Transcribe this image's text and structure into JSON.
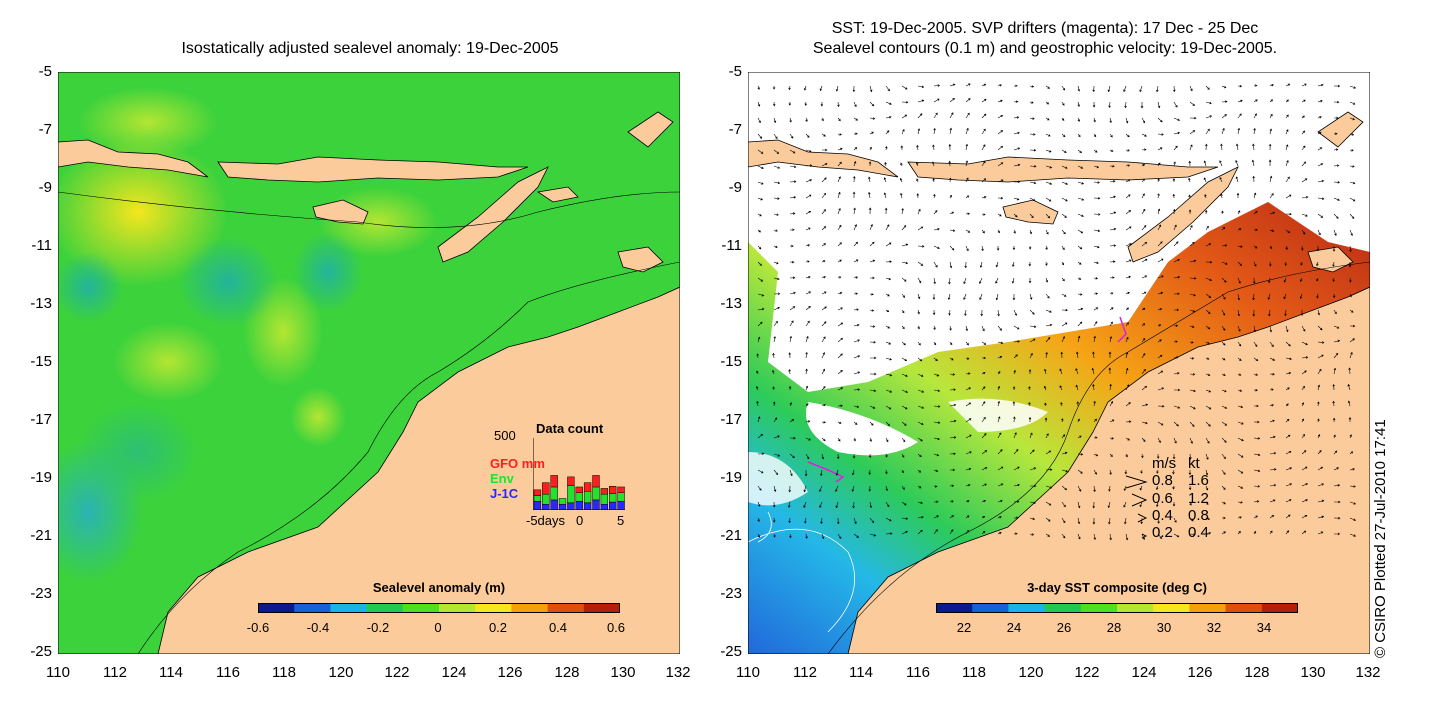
{
  "left_panel": {
    "title": "Isostatically adjusted sealevel anomaly: 19-Dec-2005",
    "y_ticks": [
      "-5",
      "-7",
      "-9",
      "-11",
      "-13",
      "-15",
      "-17",
      "-19",
      "-21",
      "-23",
      "-25"
    ],
    "x_ticks": [
      "110",
      "112",
      "114",
      "116",
      "118",
      "120",
      "122",
      "124",
      "126",
      "128",
      "130",
      "132"
    ],
    "colorbar": {
      "title": "Sealevel anomaly (m)",
      "ticks": [
        "-0.6",
        "-0.4",
        "-0.2",
        "0",
        "0.2",
        "0.4",
        "0.6"
      ],
      "colors": [
        "#0a1a8c",
        "#1660d8",
        "#19b4e6",
        "#22c850",
        "#4ee01e",
        "#b4e632",
        "#f5e61e",
        "#f5a00a",
        "#e1500a",
        "#b41e0a"
      ]
    },
    "data_count": {
      "title": "Data count",
      "ymax_label": "500",
      "legend": [
        {
          "label": "GFO mm",
          "color": "#ff1e1e"
        },
        {
          "label": "Env",
          "color": "#22e22e"
        },
        {
          "label": "J-1C",
          "color": "#2828ff"
        }
      ],
      "x_labels": [
        "-5days",
        "0",
        "5"
      ],
      "days": [
        -5,
        -4,
        -3,
        -2,
        -1,
        0,
        1,
        2,
        3,
        4,
        5
      ],
      "j1c": [
        60,
        40,
        70,
        40,
        50,
        60,
        50,
        70,
        40,
        55,
        60
      ],
      "env": [
        40,
        70,
        90,
        40,
        120,
        60,
        80,
        90,
        70,
        60,
        60
      ],
      "gfo": [
        40,
        80,
        80,
        0,
        60,
        40,
        60,
        80,
        40,
        50,
        40
      ]
    }
  },
  "right_panel": {
    "title_line1": "SST: 19-Dec-2005. SVP drifters (magenta): 17 Dec - 25 Dec",
    "title_line2": "Sealevel contours (0.1 m) and geostrophic velocity: 19-Dec-2005.",
    "y_ticks": [
      "-5",
      "-7",
      "-9",
      "-11",
      "-13",
      "-15",
      "-17",
      "-19",
      "-21",
      "-23",
      "-25"
    ],
    "x_ticks": [
      "110",
      "112",
      "114",
      "116",
      "118",
      "120",
      "122",
      "124",
      "126",
      "128",
      "130",
      "132"
    ],
    "colorbar": {
      "title": "3-day SST composite (deg C)",
      "ticks": [
        "22",
        "24",
        "26",
        "28",
        "30",
        "32",
        "34"
      ],
      "colors": [
        "#0a1a8c",
        "#1660d8",
        "#19b4e6",
        "#22c850",
        "#4ee01e",
        "#b4e632",
        "#f5e61e",
        "#f5a00a",
        "#e1500a",
        "#b41e0a"
      ]
    },
    "speed_legend": {
      "header_ms": "m/s",
      "header_kt": "kt",
      "rows": [
        {
          "ms": "0.8",
          "kt": "1.6"
        },
        {
          "ms": "0.6",
          "kt": "1.2"
        },
        {
          "ms": "0.4",
          "kt": "0.8"
        },
        {
          "ms": "0.2",
          "kt": "0.4"
        }
      ]
    }
  },
  "credit": "© CSIRO Plotted 27-Jul-2010 17:41",
  "colors": {
    "land": "#fbcb9b",
    "ocean_base": "#3cd23c",
    "coast": "#000000"
  }
}
